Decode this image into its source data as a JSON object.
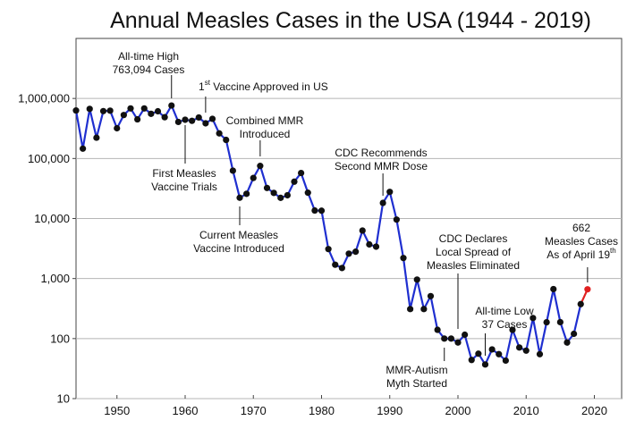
{
  "chart_data": {
    "type": "line",
    "title": "Annual Measles Cases in the USA (1944 - 2019)",
    "xlabel": "",
    "ylabel": "",
    "y_scale": "log",
    "xlim": [
      1944,
      2024
    ],
    "ylim": [
      10,
      10000000
    ],
    "x_ticks": [
      1950,
      1960,
      1970,
      1980,
      1990,
      2000,
      2010,
      2020
    ],
    "x_tick_labels": [
      "1950",
      "1960",
      "1970",
      "1980",
      "1990",
      "2000",
      "2010",
      "2020"
    ],
    "y_ticks": [
      10,
      100,
      1000,
      10000,
      100000,
      1000000
    ],
    "y_tick_labels": [
      "10",
      "100",
      "1,000",
      "10,000",
      "100,000",
      "1,000,000"
    ],
    "grid": "horizontal",
    "line_color": "#1f2fd0",
    "marker_color": "#111111",
    "highlight_color": "#e02020",
    "series": [
      {
        "name": "",
        "x": [
          1944,
          1945,
          1946,
          1947,
          1948,
          1949,
          1950,
          1951,
          1952,
          1953,
          1954,
          1955,
          1956,
          1957,
          1958,
          1959,
          1960,
          1961,
          1962,
          1963,
          1964,
          1965,
          1966,
          1967,
          1968,
          1969,
          1970,
          1971,
          1972,
          1973,
          1974,
          1975,
          1976,
          1977,
          1978,
          1979,
          1980,
          1981,
          1982,
          1983,
          1984,
          1985,
          1986,
          1987,
          1988,
          1989,
          1990,
          1991,
          1992,
          1993,
          1994,
          1995,
          1996,
          1997,
          1998,
          1999,
          2000,
          2001,
          2002,
          2003,
          2004,
          2005,
          2006,
          2007,
          2008,
          2009,
          2010,
          2011,
          2012,
          2013,
          2014,
          2015,
          2016,
          2017,
          2018
        ],
        "values": [
          630000,
          146000,
          670000,
          222000,
          616000,
          626000,
          319000,
          530000,
          683000,
          449000,
          683000,
          555000,
          612000,
          487000,
          763094,
          406000,
          442000,
          424000,
          482000,
          385000,
          458000,
          262000,
          204000,
          62700,
          22200,
          25800,
          47400,
          75300,
          32300,
          26700,
          22100,
          24400,
          41100,
          57300,
          26900,
          13600,
          13500,
          3100,
          1700,
          1500,
          2600,
          2800,
          6300,
          3700,
          3400,
          18200,
          27800,
          9600,
          2200,
          310,
          960,
          310,
          510,
          140,
          100,
          100,
          86,
          116,
          44,
          56,
          37,
          66,
          55,
          43,
          140,
          71,
          63,
          220,
          55,
          187,
          667,
          188,
          86,
          120,
          375
        ]
      }
    ],
    "highlight_point": {
      "x": 2019,
      "value": 662
    },
    "annotations": [
      {
        "id": "all-time-high",
        "lines": [
          "All-time High",
          "763,094 Cases"
        ],
        "x": 1958,
        "value": 763094,
        "color": "#111111"
      },
      {
        "id": "first-vaccine",
        "lines": [
          "1st Vaccine Approved in US"
        ],
        "superscript": "st",
        "x": 1963,
        "value": 450000,
        "color": "#111111"
      },
      {
        "id": "first-trials",
        "lines": [
          "First Measles",
          "Vaccine Trials"
        ],
        "x": 1960,
        "value": 442000,
        "color": "#111111"
      },
      {
        "id": "combined-mmr",
        "lines": [
          "Combined MMR",
          "Introduced"
        ],
        "x": 1971,
        "value": 75300,
        "color": "#111111"
      },
      {
        "id": "current-vaccine",
        "lines": [
          "Current Measles",
          "Vaccine Introduced"
        ],
        "x": 1968,
        "value": 22200,
        "color": "#111111"
      },
      {
        "id": "cdc-second-dose",
        "lines": [
          "CDC Recommends",
          "Second MMR Dose"
        ],
        "x": 1989,
        "value": 18200,
        "color": "#111111"
      },
      {
        "id": "cdc-eliminated",
        "lines": [
          "CDC Declares",
          "Local Spread of",
          "Measles Eliminated"
        ],
        "x": 2000,
        "value": 86,
        "color": "#111111"
      },
      {
        "id": "mmr-autism",
        "lines": [
          "MMR-Autism",
          "Myth Started"
        ],
        "x": 1998,
        "value": 100,
        "color": "#111111"
      },
      {
        "id": "all-time-low",
        "lines": [
          "All-time Low",
          "37 Cases"
        ],
        "x": 2004,
        "value": 37,
        "color": "#111111"
      },
      {
        "id": "measles-2019",
        "lines": [
          "662",
          "Measles Cases",
          "As of April 19th"
        ],
        "x": 2019,
        "value": 662,
        "color": "#e02020"
      }
    ]
  }
}
